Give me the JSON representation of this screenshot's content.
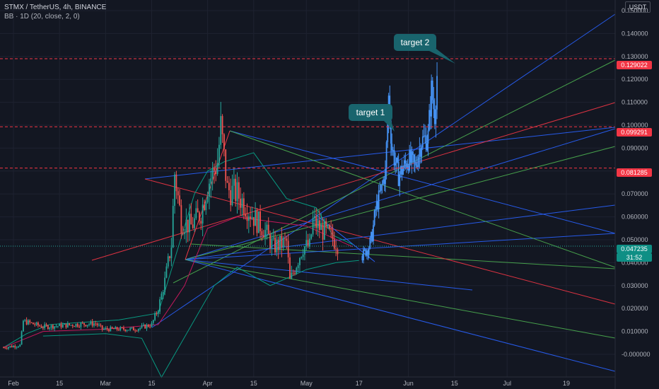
{
  "header": {
    "symbol_line": "STMX / TetherUS, 4h, BINANCE",
    "indicator_line": "BB · 1D (20, close, 2, 0)"
  },
  "currency_button": "USDT",
  "price_labels": {
    "target2": "0.129022",
    "target1": "0.099291",
    "support": "0.081285",
    "current": "0.047235",
    "countdown": "31:52"
  },
  "annotations": {
    "target2": "target 2",
    "target1": "target 1"
  },
  "colors": {
    "background": "#131722",
    "up_candle": "#26a69a",
    "down_candle": "#ef5350",
    "projection": "#4592f3",
    "fib_blue": "#2962ff",
    "fib_green": "#4caf50",
    "fib_red": "#f23645",
    "label_bg": "#19646d"
  },
  "chart_data": {
    "type": "candlestick",
    "symbol": "STMX / TetherUS",
    "interval": "4h",
    "exchange": "BINANCE",
    "indicator": "BB · 1D (20, close, 2, 0)",
    "y_axis": {
      "ticks": [
        -0.0,
        0.01,
        0.02,
        0.03,
        0.04,
        0.05,
        0.06,
        0.07,
        0.08,
        0.09,
        0.1,
        0.11,
        0.12,
        0.13,
        0.14,
        0.15
      ],
      "tick_labels": [
        "-0.000000",
        "0.010000",
        "0.020000",
        "0.030000",
        "0.040000",
        "0.050000",
        "0.060000",
        "0.070000",
        "0.080000",
        "0.090000",
        "0.100000",
        "0.110000",
        "0.120000",
        "0.130000",
        "0.140000",
        "0.150000"
      ],
      "range": [
        -0.0135,
        0.164
      ]
    },
    "x_axis": {
      "tick_labels": [
        "Feb",
        "15",
        "Mar",
        "15",
        "Apr",
        "15",
        "May",
        "17",
        "Jun",
        "15",
        "Jul",
        "19"
      ],
      "tick_dates": [
        "Feb 1",
        "Feb 15",
        "Mar 1",
        "Mar 15",
        "Apr 1",
        "Apr 15",
        "May 1",
        "May 17",
        "Jun 1",
        "Jun 15",
        "Jul 1",
        "Jul 19"
      ],
      "range": [
        "Jan 29",
        "Jul 27"
      ]
    },
    "horizontal_levels": [
      0.129022,
      0.099291,
      0.081285
    ],
    "current_price": 0.047235,
    "price_path": [
      [
        "Jan 29",
        0.003
      ],
      [
        "Feb 3",
        0.004
      ],
      [
        "Feb 4",
        0.0145
      ],
      [
        "Feb 10",
        0.012
      ],
      [
        "Feb 20",
        0.013
      ],
      [
        "Feb 26",
        0.0135
      ],
      [
        "Feb 28",
        0.011
      ],
      [
        "Mar 10",
        0.011
      ],
      [
        "Mar 15",
        0.013
      ],
      [
        "Mar 17",
        0.02
      ],
      [
        "Mar 19",
        0.032
      ],
      [
        "Mar 21",
        0.048
      ],
      [
        "Mar 22",
        0.079
      ],
      [
        "Mar 24",
        0.058
      ],
      [
        "Mar 27",
        0.056
      ],
      [
        "Mar 30",
        0.062
      ],
      [
        "Apr 1",
        0.074
      ],
      [
        "Apr 4",
        0.084
      ],
      [
        "Apr 5",
        0.099
      ],
      [
        "Apr 7",
        0.072
      ],
      [
        "Apr 10",
        0.07
      ],
      [
        "Apr 13",
        0.064
      ],
      [
        "Apr 16",
        0.058
      ],
      [
        "Apr 18",
        0.055
      ],
      [
        "Apr 21",
        0.047
      ],
      [
        "Apr 25",
        0.049
      ],
      [
        "Apr 26",
        0.032
      ],
      [
        "Apr 30",
        0.047
      ],
      [
        "May 2",
        0.047
      ],
      [
        "May 3",
        0.058
      ],
      [
        "May 6",
        0.054
      ],
      [
        "May 8",
        0.052
      ],
      [
        "May 10",
        0.049
      ],
      [
        "May 11",
        0.047
      ]
    ],
    "projection_path": [
      [
        "May 18",
        0.043
      ],
      [
        "May 20",
        0.047
      ],
      [
        "May 21",
        0.052
      ],
      [
        "May 22",
        0.063
      ],
      [
        "May 23",
        0.068
      ],
      [
        "May 25",
        0.079
      ],
      [
        "May 26",
        0.112
      ],
      [
        "May 27",
        0.09
      ],
      [
        "May 29",
        0.078
      ],
      [
        "Jun 1",
        0.085
      ],
      [
        "Jun 3",
        0.082
      ],
      [
        "Jun 5",
        0.093
      ],
      [
        "Jun 7",
        0.095
      ],
      [
        "Jun 8",
        0.115
      ],
      [
        "Jun 9",
        0.105
      ],
      [
        "Jun 10",
        0.129
      ]
    ],
    "bollinger": {
      "upper": [
        [
          "Jan 29",
          0.003
        ],
        [
          "Feb 5",
          0.009
        ],
        [
          "Feb 12",
          0.013
        ],
        [
          "Mar 5",
          0.015
        ],
        [
          "Mar 17",
          0.018
        ],
        [
          "Mar 28",
          0.07
        ],
        [
          "Apr 1",
          0.08
        ],
        [
          "Apr 6",
          0.084
        ],
        [
          "Apr 15",
          0.088
        ],
        [
          "Apr 25",
          0.068
        ],
        [
          "May 4",
          0.064
        ],
        [
          "May 9",
          0.052
        ],
        [
          "May 15",
          0.048
        ]
      ],
      "middle": [
        [
          "Jan 29",
          0.003
        ],
        [
          "Feb 10",
          0.01
        ],
        [
          "Mar 1",
          0.011
        ],
        [
          "Mar 17",
          0.013
        ],
        [
          "Mar 25",
          0.03
        ],
        [
          "Apr 1",
          0.055
        ],
        [
          "Apr 10",
          0.06
        ],
        [
          "Apr 20",
          0.058
        ],
        [
          "May 1",
          0.056
        ],
        [
          "May 15",
          0.047
        ]
      ],
      "lower": [
        [
          "Feb 10",
          0.008
        ],
        [
          "Mar 1",
          0.009
        ],
        [
          "Mar 12",
          0.007
        ],
        [
          "Mar 18",
          -0.01
        ],
        [
          "Apr 3",
          0.03
        ],
        [
          "Apr 10",
          0.038
        ],
        [
          "Apr 20",
          0.03
        ],
        [
          "May 1",
          0.037
        ],
        [
          "May 10",
          0.04
        ],
        [
          "May 17",
          0.041
        ]
      ]
    }
  }
}
